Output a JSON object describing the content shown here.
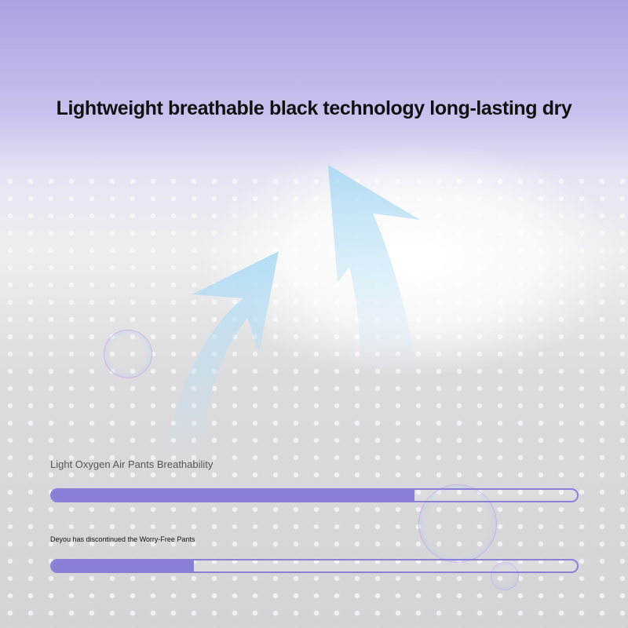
{
  "headline": "Lightweight breathable black technology long-lasting dry",
  "bars": [
    {
      "label": "Light Oxygen Air Pants Breathability",
      "value": 0.69
    },
    {
      "label": "Deyou has discontinued the Worry-Free Pants",
      "value": 0.27
    }
  ],
  "colors": {
    "accent": "#8880d6",
    "title": "#111111"
  }
}
